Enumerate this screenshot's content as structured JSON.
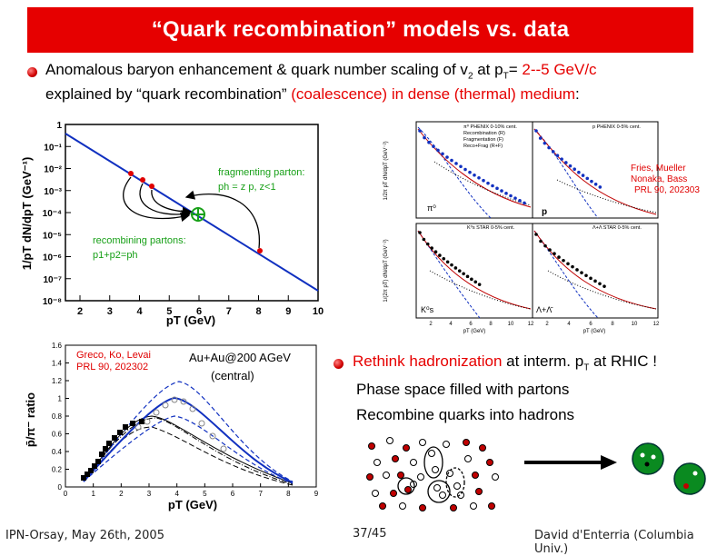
{
  "title": "“Quark recombination” models vs. data",
  "bullet1": {
    "line1_a": "Anomalous baryon enhancement & quark number scaling of v",
    "line1_sub": "2",
    "line1_b": " at p",
    "line1_sub2": "T",
    "line1_c": "= ",
    "line1_red": "2--5 GeV/c",
    "line2_a": "explained by “quark recombination” ",
    "line2_red": "(coalescence) in dense (thermal) medium",
    "line2_b": ":"
  },
  "bullet2": {
    "red": "Rethink hadronization",
    "rest_a": " at interm. p",
    "rest_sub": "T",
    "rest_b": " at RHIC !",
    "sub1": "Phase space filled with partons",
    "sub2": "Recombine quarks into hadrons"
  },
  "plot1": {
    "ylabel": "1/pT dN/dpT (GeV⁻¹)",
    "xlabel": "pT (GeV)",
    "xticks": [
      "2",
      "3",
      "4",
      "5",
      "6",
      "7",
      "8",
      "9",
      "10"
    ],
    "yticks": [
      "1",
      "10⁻¹",
      "10⁻²",
      "10⁻³",
      "10⁻⁴",
      "10⁻⁵",
      "10⁻⁶",
      "10⁻⁷",
      "10⁻⁸"
    ],
    "frag_label1": "fragmenting parton:",
    "frag_label2": "ph = z p, z<1",
    "recomb_label1": "recombining partons:",
    "recomb_label2": "p1+p2=ph"
  },
  "plot2": {
    "ref1": "Fries, Mueller",
    "ref2": "Nonaka, Bass",
    "ref3": "PRL 90, 202303",
    "legend1": "π⁰ PHENIX 0-10% cent.",
    "legend2": "Recombination (R)",
    "legend3": "Fragmentation (F)",
    "legend4": "Reco+Frag (R+F)",
    "legend5": "p PHENIX 0-5% cent.",
    "legend6": "K⁰s STAR 0-5% cent.",
    "legend7": "Λ+Λ STAR 0-5% cent.",
    "panel1": "π⁰",
    "panel2": "p",
    "panel3": "K⁰s",
    "panel4": "Λ+Λ̄",
    "xlabel": "pT (GeV)",
    "ylabel_top": "1/2π pT dN/dpT (GeV⁻²)",
    "ylabel_bot": "1/(2π pT) dN/dpT (GeV⁻²)",
    "xticks": [
      "2",
      "4",
      "6",
      "8",
      "10",
      "12"
    ]
  },
  "plot3": {
    "ref1": "Greco, Ko, Levai",
    "ref2": "PRL 90, 202302",
    "system": "Au+Au@200 AGeV",
    "central": "(central)",
    "ylabel": "p̄/π⁻ ratio",
    "xlabel": "pT (GeV)",
    "xticks": [
      "0",
      "1",
      "2",
      "3",
      "4",
      "5",
      "6",
      "7",
      "8",
      "9"
    ],
    "yticks": [
      "0",
      "0.2",
      "0.4",
      "0.6",
      "0.8",
      "1",
      "1.2",
      "1.4",
      "1.6"
    ]
  },
  "footer": {
    "left": "IPN-Orsay, May 26th, 2005",
    "center": "37/45",
    "right": "David d'Enterria (Columbia Univ.)"
  }
}
